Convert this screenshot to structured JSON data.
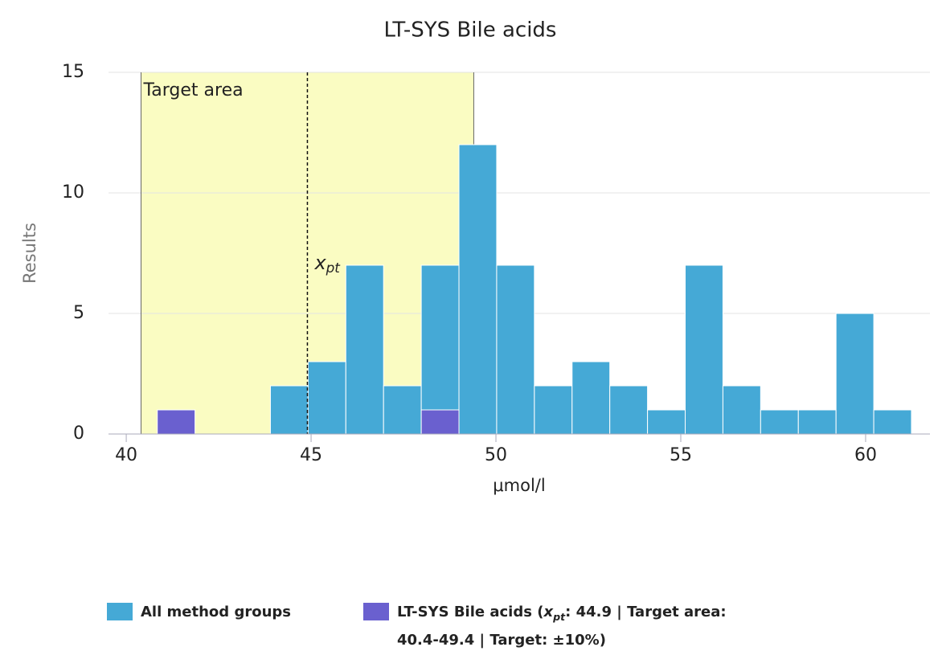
{
  "chart_data": {
    "type": "histogram",
    "title": "LT-SYS Bile acids",
    "x_label": "μmol/l",
    "y_label": "Results",
    "bins": [
      40.84,
      41.86,
      42.88,
      43.9,
      44.92,
      45.94,
      46.96,
      47.98,
      49.0,
      50.02,
      51.04,
      52.06,
      53.08,
      54.1,
      55.12,
      56.14,
      57.16,
      58.18,
      59.2,
      60.22,
      61.24
    ],
    "series": [
      {
        "name_parts": [
          {
            "text": "All method groups"
          }
        ],
        "color": "#45a9d6",
        "values": [
          0,
          0,
          0,
          2,
          3,
          7,
          2,
          7,
          12,
          7,
          2,
          3,
          2,
          1,
          7,
          2,
          1,
          1,
          5,
          1
        ]
      },
      {
        "name_parts": [
          {
            "text": "LT-SYS Bile acids ("
          },
          {
            "text": "x",
            "style": "italic"
          },
          {
            "text": "pt",
            "style": "sub"
          },
          {
            "text": ": 44.9 | Target area:"
          },
          {
            "text": "40.4-49.4 | Target: ±10%)"
          }
        ],
        "color": "#6a60cf",
        "values": [
          1,
          0,
          0,
          0,
          0,
          0,
          0,
          1,
          0,
          0,
          0,
          0,
          0,
          0,
          0,
          0,
          0,
          0,
          0,
          0
        ]
      }
    ],
    "target_area": {
      "label": "Target area",
      "from": 40.4,
      "to": 49.4,
      "color": "#fafcc2"
    },
    "xpt": {
      "value": 44.9,
      "label_parts": [
        {
          "text": "x",
          "style": "italic"
        },
        {
          "text": "pt",
          "style": "sub"
        }
      ]
    },
    "xlim": [
      39.52,
      61.74
    ],
    "xticks": [
      40,
      45,
      50,
      55,
      60
    ],
    "ylim": [
      0,
      15
    ],
    "yticks": [
      0,
      5,
      10,
      15
    ],
    "grid": true
  }
}
